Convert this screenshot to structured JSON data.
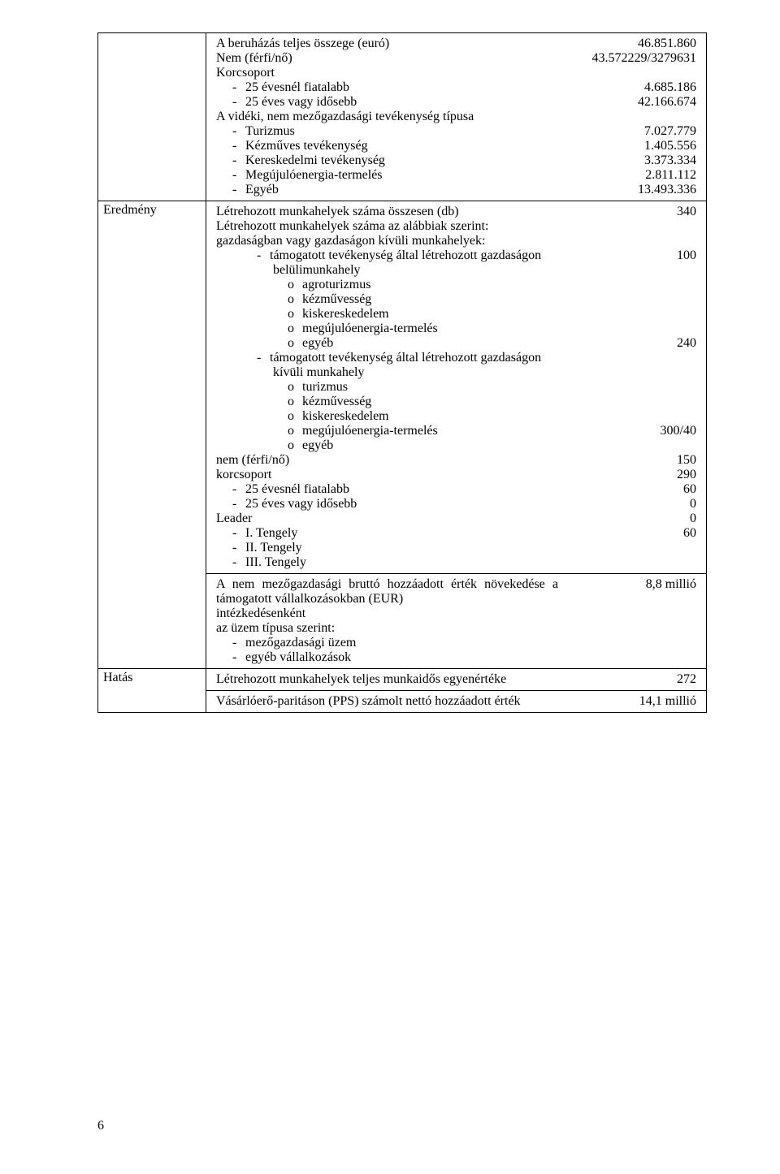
{
  "section1": {
    "rows": [
      {
        "txt": "A beruházás teljes összege (euró)",
        "val": "46.851.860",
        "cls": ""
      },
      {
        "txt": "Nem (férfi/nő)",
        "val": "43.572229/3279631",
        "cls": ""
      },
      {
        "txt": "Korcsoport",
        "val": "",
        "cls": ""
      },
      {
        "txt": "25 évesnél fiatalabb",
        "val": "4.685.186",
        "cls": "indent1 dash"
      },
      {
        "txt": "25 éves vagy idősebb",
        "val": "42.166.674",
        "cls": "indent1 dash"
      },
      {
        "txt": "A vidéki, nem mezőgazdasági tevékenység típusa",
        "val": "",
        "cls": ""
      },
      {
        "txt": "Turizmus",
        "val": "7.027.779",
        "cls": "indent1 dash"
      },
      {
        "txt": "Kézműves tevékenység",
        "val": "1.405.556",
        "cls": "indent1 dash"
      },
      {
        "txt": "Kereskedelmi tevékenység",
        "val": "3.373.334",
        "cls": "indent1 dash"
      },
      {
        "txt": "Megújulóenergia-termelés",
        "val": "2.811.112",
        "cls": "indent1 dash"
      },
      {
        "txt": "Egyéb",
        "val": "13.493.336",
        "cls": "indent1 dash"
      }
    ]
  },
  "eredmeny_label": "Eredmény",
  "section2a": {
    "rows": [
      {
        "txt": "Létrehozott munkahelyek száma összesen (db)",
        "val": "340",
        "cls": ""
      },
      {
        "txt": "Létrehozott munkahelyek száma az alábbiak szerint:",
        "val": "",
        "cls": ""
      },
      {
        "txt": "gazdaságban vagy gazdaságon kívüli munkahelyek:",
        "val": "",
        "cls": ""
      },
      {
        "txt": "támogatott tevékenység által létrehozott gazdaságon belülimunkahely",
        "val": "100",
        "cls": "indent2 dash"
      },
      {
        "txt": "agroturizmus",
        "val": "",
        "cls": "indent3 circ"
      },
      {
        "txt": "kézművesség",
        "val": "",
        "cls": "indent3 circ"
      },
      {
        "txt": "kiskereskedelem",
        "val": "",
        "cls": "indent3 circ"
      },
      {
        "txt": "megújulóenergia-termelés",
        "val": "",
        "cls": "indent3 circ"
      },
      {
        "txt": "egyéb",
        "val": "240",
        "cls": "indent3 circ"
      },
      {
        "txt": "támogatott tevékenység által létrehozott gazdaságon kívüli munkahely",
        "val": "",
        "cls": "indent2 dash"
      },
      {
        "txt": "turizmus",
        "val": "",
        "cls": "indent3 circ"
      },
      {
        "txt": "kézművesség",
        "val": "",
        "cls": "indent3 circ"
      },
      {
        "txt": "kiskereskedelem",
        "val": "",
        "cls": "indent3 circ"
      },
      {
        "txt": "megújulóenergia-termelés",
        "val": "300/40",
        "cls": "indent3 circ"
      },
      {
        "txt": "egyéb",
        "val": "",
        "cls": "indent3 circ"
      },
      {
        "txt": "nem (férfi/nő)",
        "val": "150",
        "cls": ""
      },
      {
        "txt": "korcsoport",
        "val": "290",
        "cls": ""
      },
      {
        "txt": "25 évesnél fiatalabb",
        "val": "60",
        "cls": "indent1 dash"
      },
      {
        "txt": "25 éves vagy idősebb",
        "val": "0",
        "cls": "indent1 dash"
      },
      {
        "txt": "Leader",
        "val": "0",
        "cls": ""
      },
      {
        "txt": "I. Tengely",
        "val": "60",
        "cls": "indent1 dash"
      },
      {
        "txt": "II. Tengely",
        "val": "",
        "cls": "indent1 dash"
      },
      {
        "txt": "III. Tengely",
        "val": "",
        "cls": "indent1 dash"
      }
    ]
  },
  "section2b": {
    "rows": [
      {
        "txt": "A nem mezőgazdasági bruttó hozzáadott érték növekedése a támogatott vállalkozásokban (EUR)",
        "val": "8,8 millió",
        "cls": "just"
      },
      {
        "txt": "intézkedésenként",
        "val": "",
        "cls": ""
      },
      {
        "txt": "az üzem típusa szerint:",
        "val": "",
        "cls": ""
      },
      {
        "txt": "mezőgazdasági üzem",
        "val": "",
        "cls": "indent1 dash"
      },
      {
        "txt": "egyéb vállalkozások",
        "val": "",
        "cls": "indent1 dash"
      }
    ]
  },
  "hatas_label": "Hatás",
  "section3": {
    "rows": [
      {
        "txt": "Létrehozott munkahelyek teljes munkaidős egyenértéke",
        "val": "272"
      },
      {
        "txt": "Vásárlóerő-paritáson (PPS) számolt nettó hozzáadott érték",
        "val": "14,1 millió"
      }
    ]
  },
  "page_number": "6"
}
